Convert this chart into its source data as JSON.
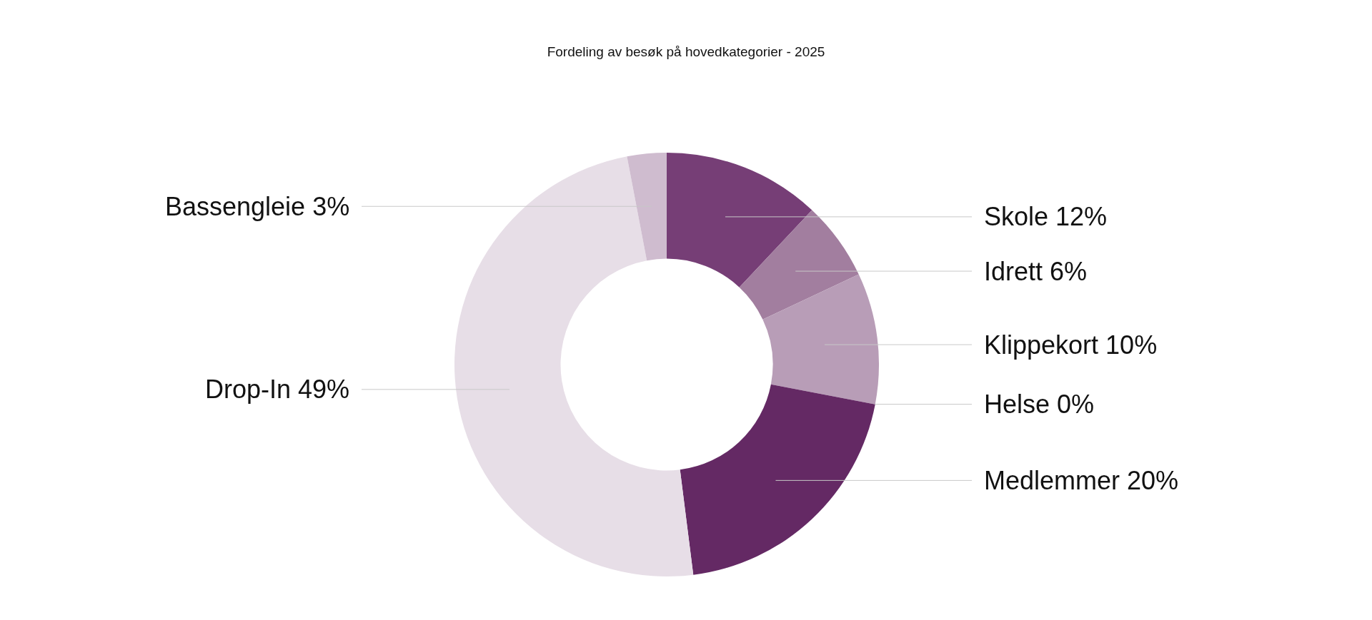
{
  "chart_data": {
    "type": "donut",
    "title": "Fordeling av besøk på hovedkategorier - 2025",
    "categories": [
      "Skole",
      "Idrett",
      "Klippekort",
      "Helse",
      "Medlemmer",
      "Drop-In",
      "Bassengleie"
    ],
    "values": [
      12,
      6,
      10,
      0,
      20,
      49,
      3
    ],
    "value_labels": [
      "12%",
      "6%",
      "10%",
      "0%",
      "20%",
      "49%",
      "3%"
    ],
    "colors": [
      "#763e76",
      "#a27e9f",
      "#b89db7",
      "#8e5f8c",
      "#642964",
      "#e7dee7",
      "#cfbccf"
    ]
  }
}
